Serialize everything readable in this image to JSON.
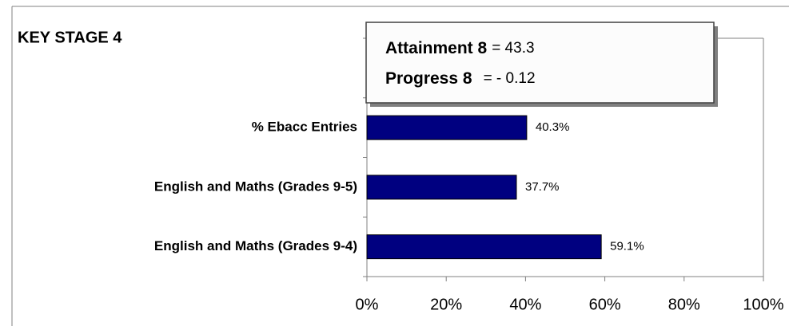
{
  "chart_data": {
    "type": "bar",
    "orientation": "horizontal",
    "title": "KEY STAGE 4",
    "categories": [
      null,
      "% Ebacc Entries",
      "English and Maths (Grades 9-5)",
      "English and Maths (Grades 9-4)"
    ],
    "values": [
      null,
      40.3,
      37.7,
      59.1
    ],
    "value_labels": [
      null,
      "40.3%",
      "37.7%",
      "59.1%"
    ],
    "color": "#000080",
    "xlim": [
      0,
      100
    ],
    "xticks": [
      {
        "value": 0,
        "label": "0%"
      },
      {
        "value": 20,
        "label": "20%"
      },
      {
        "value": 40,
        "label": "40%"
      },
      {
        "value": 60,
        "label": "60%"
      },
      {
        "value": 80,
        "label": "80%"
      },
      {
        "value": 100,
        "label": "100%"
      }
    ],
    "annotations": [
      {
        "label": "Attainment 8",
        "text": "= 43.3"
      },
      {
        "label": "Progress 8",
        "text": "= - 0.12"
      }
    ]
  }
}
